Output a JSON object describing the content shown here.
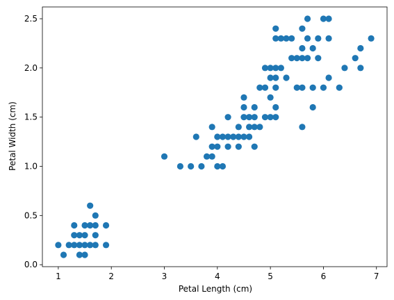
{
  "chart_data": {
    "type": "scatter",
    "title": "",
    "xlabel": "Petal Length (cm)",
    "ylabel": "Petal Width (cm)",
    "xlim": [
      0.7,
      7.2
    ],
    "ylim": [
      -0.02,
      2.62
    ],
    "xticks": [
      1,
      2,
      3,
      4,
      5,
      6,
      7
    ],
    "yticks": [
      0.0,
      0.5,
      1.0,
      1.5,
      2.0,
      2.5
    ],
    "xtick_labels": [
      "1",
      "2",
      "3",
      "4",
      "5",
      "6",
      "7"
    ],
    "ytick_labels": [
      "0.0",
      "0.5",
      "1.0",
      "1.5",
      "2.0",
      "2.5"
    ],
    "grid": false,
    "marker_color": "#1f77b4",
    "series": [
      {
        "points": [
          [
            1.0,
            0.2
          ],
          [
            1.1,
            0.1
          ],
          [
            1.2,
            0.2
          ],
          [
            1.3,
            0.2
          ],
          [
            1.3,
            0.3
          ],
          [
            1.3,
            0.4
          ],
          [
            1.4,
            0.1
          ],
          [
            1.4,
            0.2
          ],
          [
            1.4,
            0.3
          ],
          [
            1.5,
            0.1
          ],
          [
            1.5,
            0.2
          ],
          [
            1.5,
            0.3
          ],
          [
            1.5,
            0.4
          ],
          [
            1.6,
            0.2
          ],
          [
            1.6,
            0.4
          ],
          [
            1.6,
            0.6
          ],
          [
            1.7,
            0.2
          ],
          [
            1.7,
            0.3
          ],
          [
            1.7,
            0.4
          ],
          [
            1.7,
            0.5
          ],
          [
            1.9,
            0.2
          ],
          [
            1.9,
            0.4
          ],
          [
            3.0,
            1.1
          ],
          [
            3.3,
            1.0
          ],
          [
            3.5,
            1.0
          ],
          [
            3.6,
            1.3
          ],
          [
            3.7,
            1.0
          ],
          [
            3.8,
            1.1
          ],
          [
            3.9,
            1.1
          ],
          [
            3.9,
            1.2
          ],
          [
            3.9,
            1.4
          ],
          [
            4.0,
            1.0
          ],
          [
            4.0,
            1.2
          ],
          [
            4.0,
            1.3
          ],
          [
            4.1,
            1.0
          ],
          [
            4.1,
            1.3
          ],
          [
            4.2,
            1.2
          ],
          [
            4.2,
            1.3
          ],
          [
            4.2,
            1.5
          ],
          [
            4.3,
            1.3
          ],
          [
            4.4,
            1.2
          ],
          [
            4.4,
            1.3
          ],
          [
            4.4,
            1.4
          ],
          [
            4.5,
            1.3
          ],
          [
            4.5,
            1.5
          ],
          [
            4.5,
            1.6
          ],
          [
            4.5,
            1.7
          ],
          [
            4.6,
            1.3
          ],
          [
            4.6,
            1.4
          ],
          [
            4.6,
            1.5
          ],
          [
            4.7,
            1.2
          ],
          [
            4.7,
            1.4
          ],
          [
            4.7,
            1.5
          ],
          [
            4.7,
            1.6
          ],
          [
            4.8,
            1.4
          ],
          [
            4.8,
            1.8
          ],
          [
            4.9,
            1.5
          ],
          [
            4.9,
            1.8
          ],
          [
            4.9,
            2.0
          ],
          [
            5.0,
            1.5
          ],
          [
            5.0,
            1.7
          ],
          [
            5.0,
            1.9
          ],
          [
            5.0,
            2.0
          ],
          [
            5.1,
            1.5
          ],
          [
            5.1,
            1.6
          ],
          [
            5.1,
            1.8
          ],
          [
            5.1,
            1.9
          ],
          [
            5.1,
            2.0
          ],
          [
            5.1,
            2.3
          ],
          [
            5.1,
            2.4
          ],
          [
            5.2,
            2.0
          ],
          [
            5.2,
            2.3
          ],
          [
            5.3,
            1.9
          ],
          [
            5.3,
            2.3
          ],
          [
            5.4,
            2.1
          ],
          [
            5.4,
            2.3
          ],
          [
            5.5,
            1.8
          ],
          [
            5.5,
            2.1
          ],
          [
            5.6,
            1.4
          ],
          [
            5.6,
            1.8
          ],
          [
            5.6,
            2.1
          ],
          [
            5.6,
            2.2
          ],
          [
            5.6,
            2.4
          ],
          [
            5.7,
            2.1
          ],
          [
            5.7,
            2.3
          ],
          [
            5.7,
            2.5
          ],
          [
            5.8,
            1.6
          ],
          [
            5.8,
            1.8
          ],
          [
            5.8,
            2.2
          ],
          [
            5.9,
            2.1
          ],
          [
            5.9,
            2.3
          ],
          [
            6.0,
            1.8
          ],
          [
            6.0,
            2.5
          ],
          [
            6.1,
            1.9
          ],
          [
            6.1,
            2.3
          ],
          [
            6.1,
            2.5
          ],
          [
            6.3,
            1.8
          ],
          [
            6.4,
            2.0
          ],
          [
            6.6,
            2.1
          ],
          [
            6.7,
            2.0
          ],
          [
            6.7,
            2.2
          ],
          [
            6.9,
            2.3
          ]
        ]
      }
    ]
  }
}
